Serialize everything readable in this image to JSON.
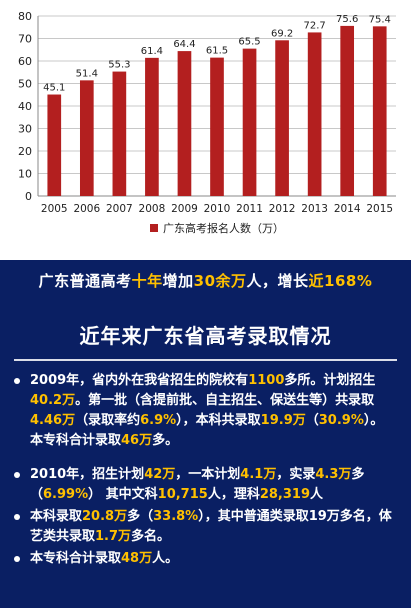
{
  "chart_data": {
    "type": "bar",
    "categories": [
      "2005",
      "2006",
      "2007",
      "2008",
      "2009",
      "2010",
      "2011",
      "2012",
      "2013",
      "2014",
      "2015"
    ],
    "values": [
      45.1,
      51.4,
      55.3,
      61.4,
      64.4,
      61.5,
      65.5,
      69.2,
      72.7,
      75.6,
      75.4
    ],
    "value_labels": [
      "45.1",
      "51.4",
      "55.3",
      "61.4",
      "64.4",
      "61.5",
      "65.5",
      "69.2",
      "72.7",
      "75.6",
      "75.4"
    ],
    "y_ticks": [
      "0",
      "10",
      "20",
      "30",
      "40",
      "50",
      "60",
      "70",
      "80"
    ],
    "ylim": [
      0,
      80
    ],
    "legend": "广东高考报名人数（万）",
    "legend_position": "bottom",
    "grid": true,
    "bar_color": "#b31f1f"
  },
  "banner": {
    "p1": "广东普通高考",
    "h1": "十年",
    "p2": "增加",
    "h2": "30余万",
    "p3": "人，增长",
    "h3": "近168%"
  },
  "info": {
    "title": "近年来广东省高考录取情况",
    "b1": {
      "t1": "2009年，省内外在我省招生的院校有",
      "h1": "1100",
      "t2": "多所。计划招生",
      "h2": "40.2万",
      "t3": "。第一批（含提前批、自主招生、保送生等）共录取",
      "h3": "4.46万",
      "t4": "（录取率约",
      "h4": "6.9%",
      "t5": "），本科共录取",
      "h5": "19.9万",
      "t6": "（",
      "h6": "30.9%",
      "t7": "）。本专科合计录取",
      "h7": "46万",
      "t8": "多。"
    },
    "b2": {
      "t1": "2010年，招生计划",
      "h1": "42万",
      "t2": "，一本计划",
      "h2": "4.1万",
      "t3": "，实录",
      "h3": "4.3万",
      "t4": "多（",
      "h4": "6.99%",
      "t5": "） 其中文科",
      "h5": "10,715",
      "t6": "人，理科",
      "h6": "28,319",
      "t7": "人"
    },
    "b3": {
      "t1": "本科录取",
      "h1": "20.8万",
      "t2": "多（",
      "h2": "33.8%",
      "t3": "），其中普通类录取19万多名，体艺类共录取",
      "h3": "1.7万",
      "t4": "多名。"
    },
    "b4": {
      "t1": "本专科合计录取",
      "h1": "48万",
      "t2": "人。"
    }
  }
}
